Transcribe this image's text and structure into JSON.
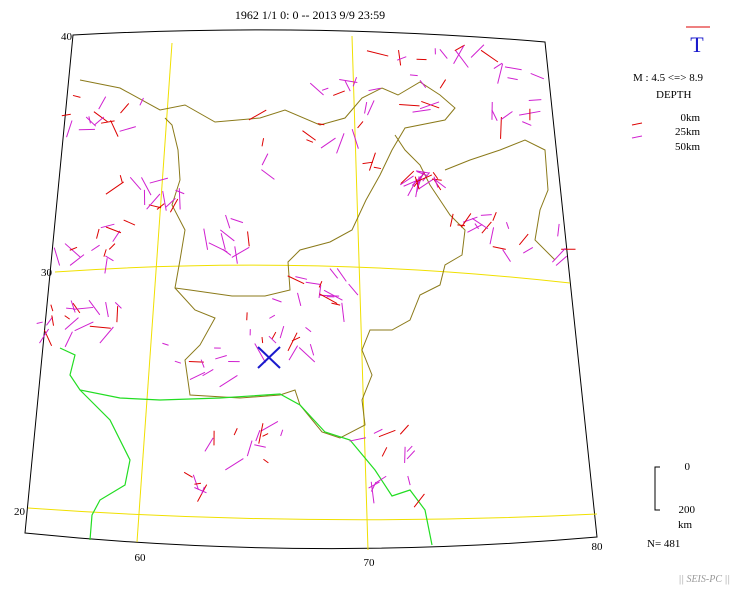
{
  "header": {
    "title": "1962 1/1 0: 0 -- 2013 9/9 23:59"
  },
  "legend": {
    "symbol": "T",
    "magnitude": "M : 4.5 <=> 8.9",
    "depth_title": "DEPTH",
    "depths": [
      "0km",
      "25km",
      "50km"
    ]
  },
  "map": {
    "lat_labels": [
      "40",
      "30",
      "20"
    ],
    "lon_labels": [
      "60",
      "70",
      "80"
    ]
  },
  "scale": {
    "top": "0",
    "bottom": "200",
    "unit": "km"
  },
  "count": "N= 481",
  "footer": "|| SEIS-PC ||"
}
